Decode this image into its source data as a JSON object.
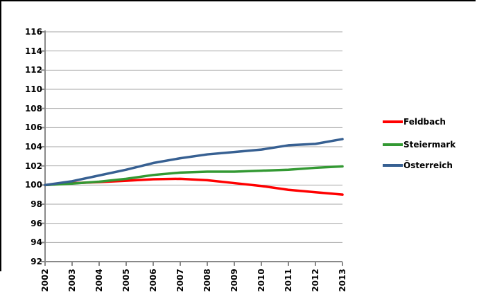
{
  "chart_data": {
    "type": "line",
    "title": "",
    "xlabel": "",
    "ylabel": "",
    "x": [
      2002,
      2003,
      2004,
      2005,
      2006,
      2007,
      2008,
      2009,
      2010,
      2011,
      2012,
      2013
    ],
    "series": [
      {
        "name": "Feldbach",
        "color": "#FF0000",
        "values": [
          100,
          100.2,
          100.3,
          100.45,
          100.6,
          100.65,
          100.5,
          100.2,
          99.9,
          99.5,
          99.25,
          99.0
        ]
      },
      {
        "name": "Steiermark",
        "color": "#339933",
        "values": [
          100,
          100.15,
          100.35,
          100.65,
          101.05,
          101.3,
          101.4,
          101.4,
          101.5,
          101.6,
          101.8,
          101.95
        ]
      },
      {
        "name": "Österreich",
        "color": "#376092",
        "values": [
          100,
          100.4,
          101.0,
          101.6,
          102.3,
          102.8,
          103.2,
          103.45,
          103.7,
          104.15,
          104.3,
          104.8
        ]
      }
    ],
    "ylim": [
      92,
      116
    ],
    "yticks": [
      92,
      94,
      96,
      98,
      100,
      102,
      104,
      106,
      108,
      110,
      112,
      114,
      116
    ],
    "grid": "horizontal",
    "legend_position": "right",
    "colors": {
      "grid": "#A6A6A6",
      "axis": "#898989",
      "tick": "#898989",
      "label": "#000000",
      "background": "#FFFFFF",
      "frame_border": "#000000"
    }
  }
}
